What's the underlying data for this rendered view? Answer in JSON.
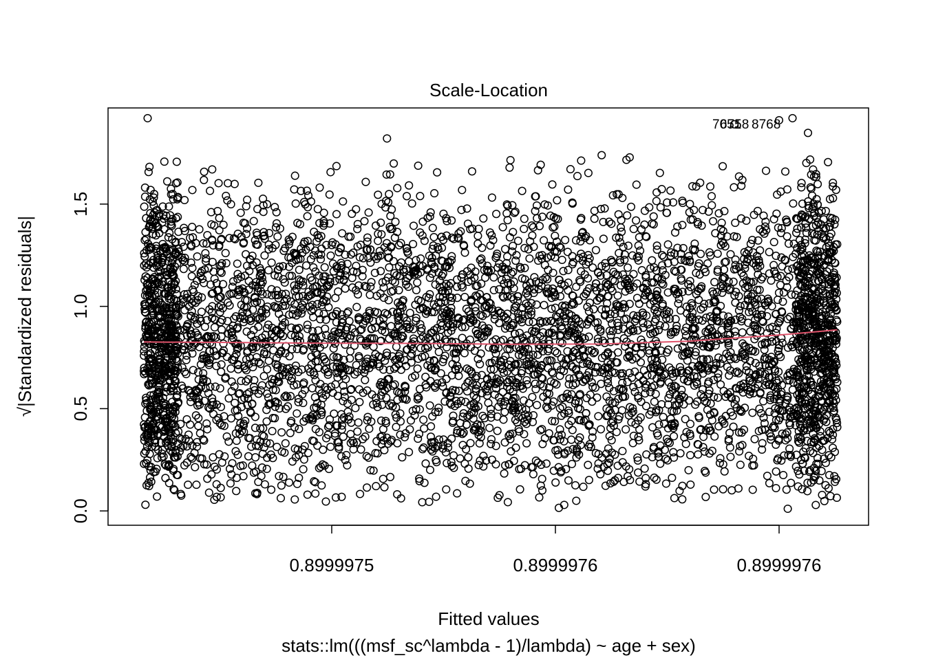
{
  "chart_data": {
    "type": "scatter",
    "title": "Scale-Location",
    "xlabel": "Fitted values",
    "subtitle": "stats::lm(((msf_sc^lambda - 1)/lambda) ~ age + sex)",
    "ylabel": "√|Standardized residuals|",
    "x_ticks": [
      {
        "value": 0.8999975,
        "label": "0.8999975"
      },
      {
        "value": 0.89999755,
        "label": "0.8999976"
      },
      {
        "value": 0.8999976,
        "label": "0.8999976"
      }
    ],
    "y_ticks": [
      {
        "value": 0.0,
        "label": "0.0"
      },
      {
        "value": 0.5,
        "label": "0.5"
      },
      {
        "value": 1.0,
        "label": "1.0"
      },
      {
        "value": 1.5,
        "label": "1.5"
      }
    ],
    "xlim": [
      0.89999745,
      0.89999762
    ],
    "ylim": [
      -0.07,
      1.97
    ],
    "x_range_data": [
      0.899997458,
      0.899997613
    ],
    "y_range_data": [
      0.0,
      1.92
    ],
    "smoother": {
      "color": "#DF536B",
      "x": [
        0.899997458,
        0.89999748,
        0.8999975,
        0.89999752,
        0.89999754,
        0.89999756,
        0.89999758,
        0.8999976,
        0.899997613
      ],
      "y": [
        0.826,
        0.823,
        0.82,
        0.819,
        0.815,
        0.816,
        0.83,
        0.86,
        0.885
      ]
    },
    "point_labels": [
      "7051",
      "6758",
      "8768"
    ],
    "grid": false,
    "point_color": "#000000"
  }
}
